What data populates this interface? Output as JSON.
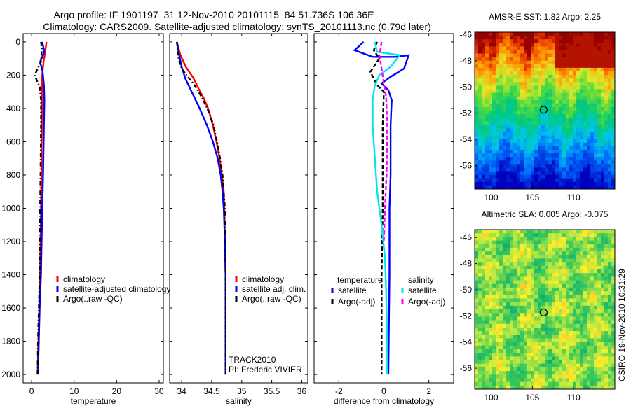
{
  "figure": {
    "title_line1": "Argo profile: IF 1901197_31 12-Nov-2010 20101115_84 51.736S 106.36E",
    "title_line2": "Climatology: CARS2009. Satellite-adjusted climatology: synTS_20101113.nc (0.79d later)",
    "credit": "CSIRO 19-Nov-2010 10:31:29",
    "track_label": "TRACK2010",
    "pi_label": "PI: Frederic VIVIER"
  },
  "colors": {
    "climatology": "#ff0000",
    "satellite": "#0000ff",
    "argo": "#000000",
    "satellite_salinity": "#00e5ee",
    "argo_salinity_diff": "#ff00ff"
  },
  "chart_data": [
    {
      "type": "line",
      "panel": "temperature",
      "xlabel": "temperature",
      "ylabel": "",
      "xlim": [
        -2,
        31
      ],
      "ylim": [
        2050,
        -50
      ],
      "y_reversed": true,
      "xticks": [
        0,
        10,
        20,
        30
      ],
      "yticks": [
        0,
        200,
        400,
        600,
        800,
        1000,
        1200,
        1400,
        1600,
        1800,
        2000
      ],
      "legend": [
        "climatology",
        "satellite-adjusted climatology",
        "Argo(..raw -QC)"
      ],
      "series": [
        {
          "name": "climatology",
          "color": "#ff0000",
          "style": "solid",
          "points": [
            [
              3.5,
              0
            ],
            [
              3.2,
              60
            ],
            [
              2.8,
              120
            ],
            [
              2.5,
              200
            ],
            [
              2.4,
              300
            ],
            [
              2.4,
              500
            ],
            [
              2.3,
              800
            ],
            [
              2.2,
              1000
            ],
            [
              2.0,
              1400
            ],
            [
              1.8,
              1600
            ],
            [
              1.6,
              1800
            ],
            [
              1.4,
              2000
            ]
          ]
        },
        {
          "name": "satellite-adjusted climatology",
          "color": "#0000ff",
          "style": "solid",
          "points": [
            [
              2.5,
              0
            ],
            [
              3.0,
              60
            ],
            [
              2.0,
              120
            ],
            [
              2.6,
              180
            ],
            [
              2.9,
              260
            ],
            [
              3.0,
              350
            ],
            [
              2.9,
              500
            ],
            [
              2.7,
              800
            ],
            [
              2.5,
              1000
            ],
            [
              2.2,
              1400
            ],
            [
              1.9,
              1600
            ],
            [
              1.7,
              1800
            ],
            [
              1.5,
              2000
            ]
          ]
        },
        {
          "name": "Argo(..raw -QC)",
          "color": "#000000",
          "style": "dashdot",
          "points": [
            [
              2.2,
              0
            ],
            [
              2.4,
              40
            ],
            [
              2.2,
              120
            ],
            [
              0.7,
              200
            ],
            [
              1.2,
              230
            ],
            [
              1.9,
              270
            ],
            [
              2.2,
              350
            ],
            [
              2.2,
              500
            ],
            [
              2.1,
              800
            ],
            [
              2.0,
              1000
            ],
            [
              1.9,
              1400
            ],
            [
              1.7,
              1600
            ],
            [
              1.5,
              1800
            ],
            [
              1.4,
              2000
            ]
          ]
        }
      ]
    },
    {
      "type": "line",
      "panel": "salinity",
      "xlabel": "salinity",
      "ylabel": "",
      "xlim": [
        33.8,
        36.1
      ],
      "ylim": [
        2050,
        -50
      ],
      "y_reversed": true,
      "xticks": [
        34,
        34.5,
        35,
        35.5,
        36
      ],
      "legend": [
        "climatology",
        "satellite adj. clim.",
        "Argo(..raw -QC)"
      ],
      "series": [
        {
          "name": "climatology",
          "color": "#ff0000",
          "style": "solid",
          "points": [
            [
              33.92,
              0
            ],
            [
              33.98,
              80
            ],
            [
              34.07,
              150
            ],
            [
              34.2,
              220
            ],
            [
              34.28,
              280
            ],
            [
              34.37,
              340
            ],
            [
              34.44,
              400
            ],
            [
              34.52,
              500
            ],
            [
              34.58,
              600
            ],
            [
              34.63,
              700
            ],
            [
              34.67,
              800
            ],
            [
              34.7,
              900
            ],
            [
              34.71,
              1000
            ],
            [
              34.72,
              1200
            ],
            [
              34.73,
              1400
            ],
            [
              34.73,
              2000
            ]
          ]
        },
        {
          "name": "satellite adj. clim.",
          "color": "#0000ff",
          "style": "solid",
          "points": [
            [
              33.92,
              0
            ],
            [
              33.96,
              80
            ],
            [
              34.0,
              150
            ],
            [
              34.06,
              220
            ],
            [
              34.14,
              280
            ],
            [
              34.22,
              340
            ],
            [
              34.3,
              400
            ],
            [
              34.42,
              500
            ],
            [
              34.52,
              600
            ],
            [
              34.6,
              700
            ],
            [
              34.65,
              800
            ],
            [
              34.68,
              900
            ],
            [
              34.7,
              1000
            ],
            [
              34.72,
              1200
            ],
            [
              34.73,
              1400
            ],
            [
              34.73,
              2000
            ]
          ]
        },
        {
          "name": "Argo(..raw -QC)",
          "color": "#000000",
          "style": "dashdot",
          "points": [
            [
              33.92,
              0
            ],
            [
              33.95,
              100
            ],
            [
              34.0,
              160
            ],
            [
              34.08,
              200
            ],
            [
              34.17,
              240
            ],
            [
              34.25,
              280
            ],
            [
              34.33,
              330
            ],
            [
              34.4,
              380
            ],
            [
              34.46,
              430
            ],
            [
              34.53,
              500
            ],
            [
              34.59,
              600
            ],
            [
              34.64,
              700
            ],
            [
              34.68,
              800
            ],
            [
              34.7,
              900
            ],
            [
              34.72,
              1000
            ],
            [
              34.73,
              1200
            ],
            [
              34.73,
              1400
            ],
            [
              34.73,
              2000
            ]
          ]
        }
      ]
    },
    {
      "type": "line",
      "panel": "difference",
      "xlabel": "difference from climatology",
      "ylabel": "",
      "xlim": [
        -3.1,
        3.1
      ],
      "ylim": [
        2050,
        -50
      ],
      "y_reversed": true,
      "xticks": [
        -2,
        0,
        2
      ],
      "legend_titles": [
        "temperature",
        "salinity"
      ],
      "legend": [
        "satellite",
        "Argo(-adj)",
        "satellite",
        "Argo(-adj)"
      ],
      "series": [
        {
          "name": "satellite",
          "group": "temperature",
          "color": "#0000ff",
          "style": "solid",
          "points": [
            [
              -0.9,
              0
            ],
            [
              -1.3,
              50
            ],
            [
              -0.5,
              90
            ],
            [
              0.5,
              90
            ],
            [
              1.1,
              80
            ],
            [
              0.9,
              160
            ],
            [
              0.3,
              210
            ],
            [
              -0.1,
              250
            ],
            [
              0.2,
              290
            ],
            [
              0.35,
              350
            ],
            [
              0.3,
              500
            ],
            [
              0.3,
              800
            ],
            [
              0.25,
              1000
            ],
            [
              0.25,
              1400
            ],
            [
              0.2,
              2000
            ]
          ]
        },
        {
          "name": "Argo(-adj)",
          "group": "temperature",
          "color": "#000000",
          "style": "dashed",
          "points": [
            [
              -0.3,
              0
            ],
            [
              -0.45,
              50
            ],
            [
              -0.2,
              100
            ],
            [
              -0.6,
              180
            ],
            [
              -0.3,
              260
            ],
            [
              0.0,
              300
            ],
            [
              -0.05,
              500
            ],
            [
              -0.05,
              800
            ],
            [
              -0.05,
              1000
            ],
            [
              -0.1,
              1400
            ],
            [
              -0.1,
              1600
            ],
            [
              -0.1,
              2000
            ]
          ]
        },
        {
          "name": "satellite",
          "group": "salinity",
          "color": "#00e5ee",
          "style": "solid",
          "points": [
            [
              -0.4,
              0
            ],
            [
              -0.3,
              60
            ],
            [
              0.7,
              80
            ],
            [
              0.3,
              150
            ],
            [
              -0.2,
              200
            ],
            [
              -0.4,
              260
            ],
            [
              -0.5,
              350
            ],
            [
              -0.5,
              500
            ],
            [
              -0.4,
              700
            ],
            [
              -0.3,
              900
            ],
            [
              -0.1,
              1100
            ],
            [
              0.05,
              1300
            ],
            [
              0.1,
              1500
            ],
            [
              0.15,
              1800
            ],
            [
              0.15,
              2000
            ]
          ]
        },
        {
          "name": "Argo(-adj)",
          "group": "salinity",
          "color": "#ff00ff",
          "style": "dashed",
          "points": [
            [
              -0.1,
              0
            ],
            [
              -0.2,
              80
            ],
            [
              -0.1,
              160
            ],
            [
              0.0,
              250
            ],
            [
              0.1,
              330
            ],
            [
              0.15,
              500
            ],
            [
              0.12,
              800
            ],
            [
              0.05,
              1000
            ],
            [
              0.0,
              1200
            ]
          ]
        }
      ]
    }
  ],
  "maps": [
    {
      "title": "AMSR-E SST: 1.82 Argo: 2.25",
      "xticks": [
        100,
        105,
        110
      ],
      "yticks": [
        -46,
        -48,
        -50,
        -52,
        -54,
        -56
      ],
      "xlim": [
        98,
        115
      ],
      "ylim": [
        -57.8,
        -45.8
      ],
      "marker": {
        "lon": 106.36,
        "lat": -51.736
      },
      "field": "sst"
    },
    {
      "title": "Altimetric SLA: 0.005 Argo: -0.075",
      "xticks": [
        100,
        105,
        110
      ],
      "yticks": [
        -46,
        -48,
        -50,
        -52,
        -54,
        -56
      ],
      "xlim": [
        98,
        115
      ],
      "ylim": [
        -57.6,
        -45.4
      ],
      "marker": {
        "lon": 106.36,
        "lat": -51.736
      },
      "field": "sla"
    }
  ]
}
